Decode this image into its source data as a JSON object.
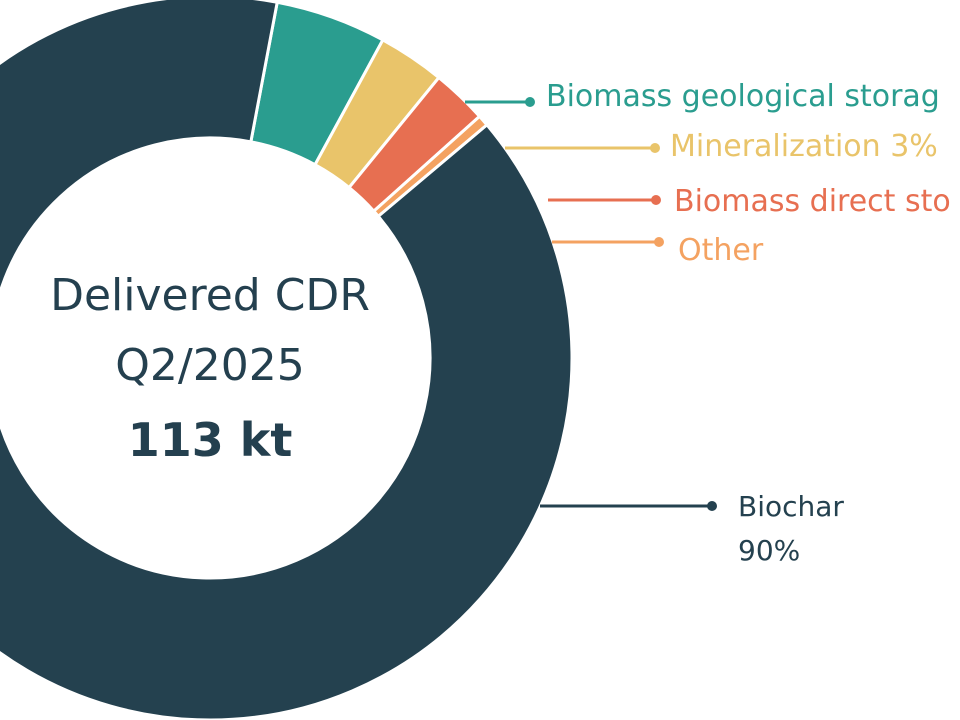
{
  "center": {
    "line1": "Delivered CDR",
    "line2": "Q2/2025",
    "total": "113 kt"
  },
  "chart_data": {
    "type": "pie",
    "variant": "donut",
    "total_label": "113 kt",
    "slices": [
      {
        "label": "Biochar",
        "value_label": "90%",
        "value": 90,
        "color": "#24414f"
      },
      {
        "label": "Biomass geological storag",
        "value_label": "",
        "value": 5,
        "color": "#2a9d8f"
      },
      {
        "label": "Mineralization 3%",
        "value_label": "",
        "value": 3,
        "color": "#e9c46a"
      },
      {
        "label": "Biomass direct sto",
        "value_label": "",
        "value": 2.5,
        "color": "#e76f51"
      },
      {
        "label": "Other",
        "value_label": "",
        "value": 0.5,
        "color": "#f4a261"
      }
    ]
  }
}
